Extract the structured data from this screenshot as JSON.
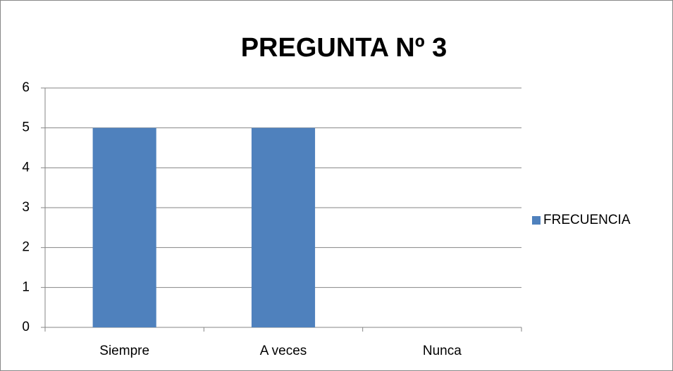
{
  "chart_data": {
    "type": "bar",
    "title": "PREGUNTA Nº 3",
    "categories": [
      "Siempre",
      "A veces",
      "Nunca"
    ],
    "series": [
      {
        "name": "FRECUENCIA",
        "color": "#4f81bd",
        "values": [
          5,
          5,
          0
        ]
      }
    ],
    "ylim": [
      0,
      6
    ],
    "yticks": [
      0,
      1,
      2,
      3,
      4,
      5,
      6
    ],
    "grid": true,
    "legend": "right"
  }
}
